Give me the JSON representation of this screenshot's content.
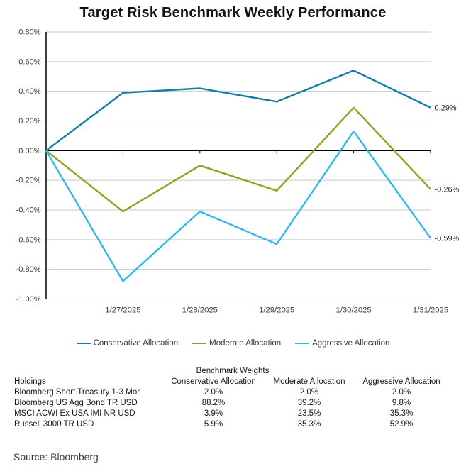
{
  "chart_data": {
    "type": "line",
    "title": "Target Risk Benchmark Weekly Performance",
    "x_labels": [
      "",
      "1/27/2025",
      "1/28/2025",
      "1/29/2025",
      "1/30/2025",
      "1/31/2025"
    ],
    "series": [
      {
        "name": "Conservative Allocation",
        "color": "#147DA5",
        "values": [
          0.0,
          0.39,
          0.42,
          0.33,
          0.54,
          0.29
        ],
        "end_label": "0.29%"
      },
      {
        "name": "Moderate Allocation",
        "color": "#87A81E",
        "values": [
          0.0,
          -0.41,
          -0.1,
          -0.27,
          0.29,
          -0.26
        ],
        "end_label": "-0.26%"
      },
      {
        "name": "Aggressive Allocation",
        "color": "#2DB9EB",
        "values": [
          0.0,
          -0.88,
          -0.41,
          -0.63,
          0.13,
          -0.59
        ],
        "end_label": "-0.59%"
      }
    ],
    "y_ticks": [
      {
        "value": 0.8,
        "label": "0.80%"
      },
      {
        "value": 0.6,
        "label": "0.60%"
      },
      {
        "value": 0.4,
        "label": "0.40%"
      },
      {
        "value": 0.2,
        "label": "0.20%"
      },
      {
        "value": 0.0,
        "label": "0.00%"
      },
      {
        "value": -0.2,
        "label": "-0.20%"
      },
      {
        "value": -0.4,
        "label": "-0.40%"
      },
      {
        "value": -0.6,
        "label": "-0.60%"
      },
      {
        "value": -0.8,
        "label": "-0.80%"
      },
      {
        "value": -1.0,
        "label": "-1.00%"
      }
    ],
    "ylim": [
      -1.0,
      0.8
    ],
    "grid": true,
    "legend_position": "bottom",
    "colors": {
      "grid": "#C9C9C9",
      "zero_axis": "#000000",
      "y_axis": "#000000",
      "bottom_border": "#ABABAB",
      "tick_text": "#3D3D3D",
      "end_label_text": "#262626"
    }
  },
  "table": {
    "title": "Benchmark Weights",
    "headers": [
      "Holdings",
      "Conservative Allocation",
      "Moderate Allocation",
      "Aggressive Allocation"
    ],
    "rows": [
      [
        "Bloomberg Short Treasury 1-3 Mor",
        "2.0%",
        "2.0%",
        "2.0%"
      ],
      [
        "Bloomberg US Agg Bond TR USD",
        "88.2%",
        "39.2%",
        "9.8%"
      ],
      [
        "MSCI ACWI Ex USA IMI NR USD",
        "3.9%",
        "23.5%",
        "35.3%"
      ],
      [
        "Russell 3000 TR USD",
        "5.9%",
        "35.3%",
        "52.9%"
      ]
    ]
  },
  "source_label": "Source: Bloomberg"
}
